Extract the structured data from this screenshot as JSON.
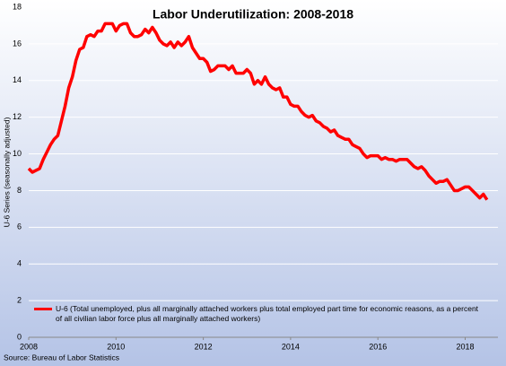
{
  "chart_data": {
    "type": "line",
    "title": "Labor Underutilization:  2008-2018",
    "y_label": "U-6 Series (seasonally adjusted)",
    "source": "Source: Bureau of Labor Statistics",
    "xlim": [
      2008,
      2018.75
    ],
    "xticks": [
      2008,
      2010,
      2012,
      2014,
      2016,
      2018
    ],
    "ylim": [
      0,
      18
    ],
    "yticks": [
      0,
      2,
      4,
      6,
      8,
      10,
      12,
      14,
      16,
      18
    ],
    "grid": true,
    "legend": "lower left",
    "x": [
      2008,
      2008.083,
      2008.167,
      2008.25,
      2008.333,
      2008.417,
      2008.5,
      2008.583,
      2008.667,
      2008.75,
      2008.833,
      2008.917,
      2009,
      2009.083,
      2009.167,
      2009.25,
      2009.333,
      2009.417,
      2009.5,
      2009.583,
      2009.667,
      2009.75,
      2009.833,
      2009.917,
      2010,
      2010.083,
      2010.167,
      2010.25,
      2010.333,
      2010.417,
      2010.5,
      2010.583,
      2010.667,
      2010.75,
      2010.833,
      2010.917,
      2011,
      2011.083,
      2011.167,
      2011.25,
      2011.333,
      2011.417,
      2011.5,
      2011.583,
      2011.667,
      2011.75,
      2011.833,
      2011.917,
      2012,
      2012.083,
      2012.167,
      2012.25,
      2012.333,
      2012.417,
      2012.5,
      2012.583,
      2012.667,
      2012.75,
      2012.833,
      2012.917,
      2013,
      2013.083,
      2013.167,
      2013.25,
      2013.333,
      2013.417,
      2013.5,
      2013.583,
      2013.667,
      2013.75,
      2013.833,
      2013.917,
      2014,
      2014.083,
      2014.167,
      2014.25,
      2014.333,
      2014.417,
      2014.5,
      2014.583,
      2014.667,
      2014.75,
      2014.833,
      2014.917,
      2015,
      2015.083,
      2015.167,
      2015.25,
      2015.333,
      2015.417,
      2015.5,
      2015.583,
      2015.667,
      2015.75,
      2015.833,
      2015.917,
      2016,
      2016.083,
      2016.167,
      2016.25,
      2016.333,
      2016.417,
      2016.5,
      2016.583,
      2016.667,
      2016.75,
      2016.833,
      2016.917,
      2017,
      2017.083,
      2017.167,
      2017.25,
      2017.333,
      2017.417,
      2017.5,
      2017.583,
      2017.667,
      2017.75,
      2017.833,
      2017.917,
      2018,
      2018.083,
      2018.167,
      2018.25,
      2018.333,
      2018.417,
      2018.5
    ],
    "series": [
      {
        "name": "U-6 (Total unemployed, plus all marginally attached workers plus total employed part time for economic reasons, as a percent of all civilian labor force plus all marginally attached workers)",
        "color": "#ff0000",
        "values": [
          9.2,
          9.0,
          9.1,
          9.2,
          9.7,
          10.1,
          10.5,
          10.8,
          11.0,
          11.8,
          12.6,
          13.6,
          14.2,
          15.1,
          15.7,
          15.8,
          16.4,
          16.5,
          16.4,
          16.7,
          16.7,
          17.1,
          17.1,
          17.1,
          16.7,
          17.0,
          17.1,
          17.1,
          16.6,
          16.4,
          16.4,
          16.5,
          16.8,
          16.6,
          16.9,
          16.6,
          16.2,
          16.0,
          15.9,
          16.1,
          15.8,
          16.1,
          15.9,
          16.1,
          16.4,
          15.8,
          15.5,
          15.2,
          15.2,
          15.0,
          14.5,
          14.6,
          14.8,
          14.8,
          14.8,
          14.6,
          14.8,
          14.4,
          14.4,
          14.4,
          14.6,
          14.4,
          13.8,
          14.0,
          13.8,
          14.2,
          13.8,
          13.6,
          13.5,
          13.6,
          13.1,
          13.1,
          12.7,
          12.6,
          12.6,
          12.3,
          12.1,
          12.0,
          12.1,
          11.8,
          11.7,
          11.5,
          11.4,
          11.2,
          11.3,
          11.0,
          10.9,
          10.8,
          10.8,
          10.5,
          10.4,
          10.3,
          10.0,
          9.8,
          9.9,
          9.9,
          9.9,
          9.7,
          9.8,
          9.7,
          9.7,
          9.6,
          9.7,
          9.7,
          9.7,
          9.5,
          9.3,
          9.2,
          9.3,
          9.1,
          8.8,
          8.6,
          8.4,
          8.5,
          8.5,
          8.6,
          8.3,
          8.0,
          8.0,
          8.1,
          8.2,
          8.2,
          8.0,
          7.8,
          7.6,
          7.8,
          7.5
        ]
      }
    ]
  }
}
